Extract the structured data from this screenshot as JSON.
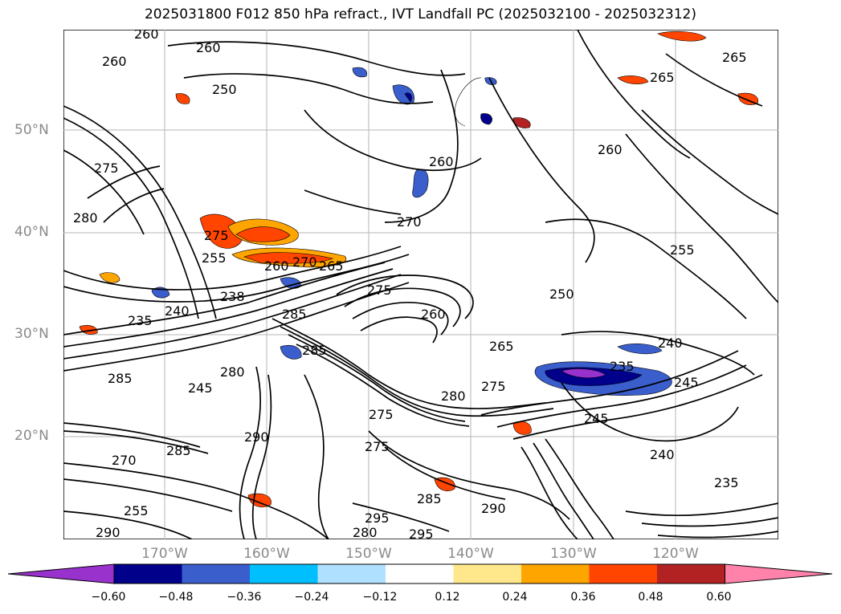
{
  "title": "2025031800 F012 850 hPa refract., IVT Landfall PC (2025032100 - 2025032312)",
  "map": {
    "lat_labels": [
      "50°N",
      "40°N",
      "30°N",
      "20°N"
    ],
    "lon_labels": [
      "170°W",
      "160°W",
      "150°W",
      "140°W",
      "130°W",
      "120°W"
    ],
    "contour_labels": [
      "260",
      "260",
      "260",
      "265",
      "265",
      "250",
      "260",
      "260",
      "270",
      "275",
      "280",
      "275",
      "265",
      "260",
      "270",
      "255",
      "235",
      "240",
      "238",
      "285",
      "275",
      "285",
      "250",
      "255",
      "260",
      "265",
      "240",
      "235",
      "245",
      "245",
      "280",
      "275",
      "280",
      "285",
      "290",
      "285",
      "270",
      "245",
      "240",
      "235",
      "285",
      "255",
      "290",
      "295",
      "295",
      "280",
      "290",
      "275",
      "275"
    ]
  },
  "colorbar": {
    "colors": [
      "#9932cc",
      "#00008b",
      "#3a5fcd",
      "#00bfff",
      "#b0e0ff",
      "#ffffff",
      "#ffe88c",
      "#ffa500",
      "#ff4500",
      "#b22222",
      "#ff82ab"
    ],
    "ticks": [
      "−0.60",
      "−0.48",
      "−0.36",
      "−0.24",
      "−0.12",
      "0.12",
      "0.24",
      "0.36",
      "0.48",
      "0.60"
    ]
  }
}
